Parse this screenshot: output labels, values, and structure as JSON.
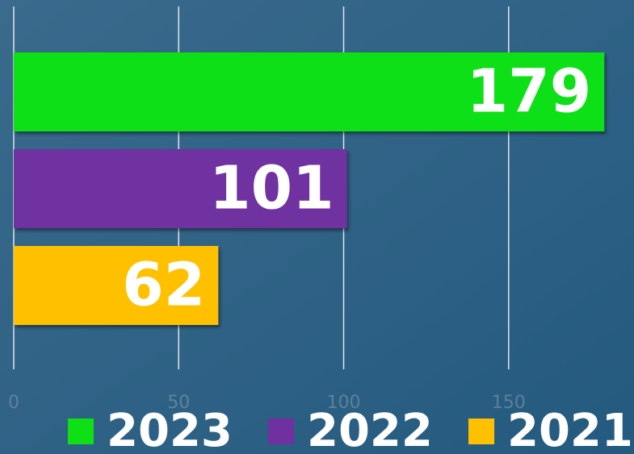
{
  "chart_data": {
    "type": "bar",
    "orientation": "horizontal",
    "series": [
      {
        "name": "2023",
        "color": "#0fe015",
        "values": [
          179
        ]
      },
      {
        "name": "2022",
        "color": "#7030a0",
        "values": [
          101
        ]
      },
      {
        "name": "2021",
        "color": "#ffc000",
        "values": [
          62
        ]
      }
    ],
    "xlim": [
      0,
      188
    ],
    "xticks": [
      0,
      50,
      100,
      150
    ],
    "grid": true,
    "legend": "bottom"
  }
}
